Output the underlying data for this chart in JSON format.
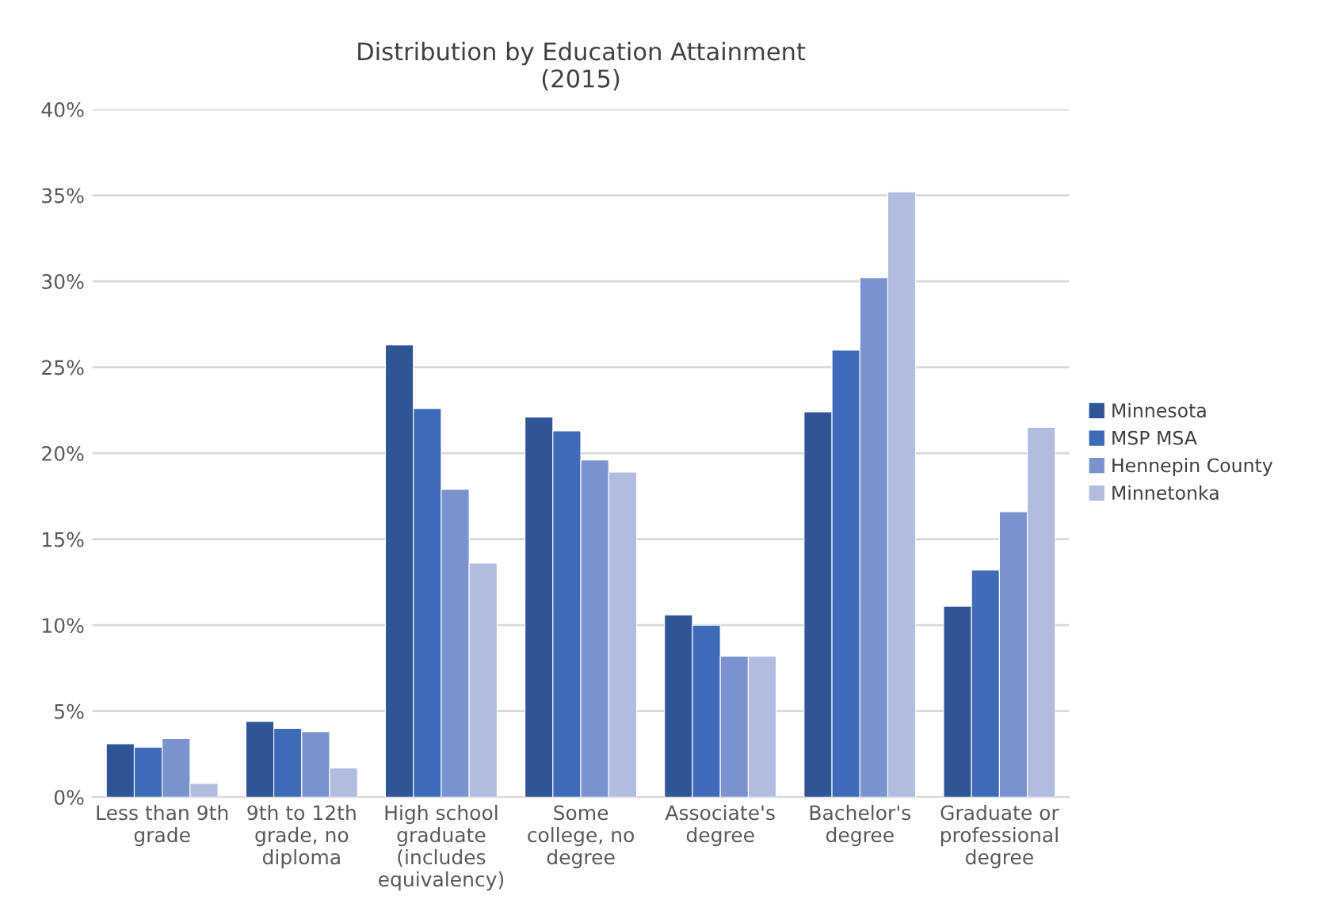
{
  "chart_data": {
    "type": "bar",
    "title": "Distribution by Education Attainment\n(2015)",
    "categories": [
      "Less than 9th\ngrade",
      "9th to 12th\ngrade, no\ndiploma",
      "High school\ngraduate\n(includes\nequivalency)",
      "Some\ncollege, no\ndegree",
      "Associate's\ndegree",
      "Bachelor's\ndegree",
      "Graduate or\nprofessional\ndegree"
    ],
    "series": [
      {
        "name": "Minnesota",
        "color": "#2f5597",
        "values": [
          3.1,
          4.4,
          26.3,
          22.1,
          10.6,
          22.4,
          11.1
        ]
      },
      {
        "name": "MSP MSA",
        "color": "#3e6ab8",
        "values": [
          2.9,
          4.0,
          22.6,
          21.3,
          10.0,
          26.0,
          13.2
        ]
      },
      {
        "name": "Hennepin County",
        "color": "#7a93cf",
        "values": [
          3.4,
          3.8,
          17.9,
          19.6,
          8.2,
          30.2,
          16.6
        ]
      },
      {
        "name": "Minnetonka",
        "color": "#b0bde0",
        "values": [
          0.8,
          1.7,
          13.6,
          18.9,
          8.2,
          35.2,
          21.5
        ]
      }
    ],
    "ylim": [
      0,
      40
    ],
    "yticks": [
      {
        "value": 0,
        "label": "0%"
      },
      {
        "value": 5,
        "label": "5%"
      },
      {
        "value": 10,
        "label": "10%"
      },
      {
        "value": 15,
        "label": "15%"
      },
      {
        "value": 20,
        "label": "20%"
      },
      {
        "value": 25,
        "label": "25%"
      },
      {
        "value": 30,
        "label": "30%"
      },
      {
        "value": 35,
        "label": "35%"
      },
      {
        "value": 40,
        "label": "40%"
      }
    ],
    "grid": "y",
    "legend": "right"
  }
}
